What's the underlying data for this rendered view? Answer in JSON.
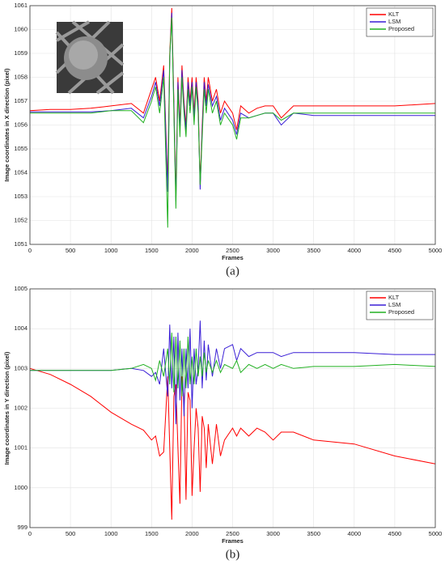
{
  "chart_data": [
    {
      "type": "line",
      "caption": "(a)",
      "xlabel": "Frames",
      "ylabel": "Image coordinates in X direction (pixel)",
      "x": [
        0,
        250,
        500,
        750,
        1000,
        1250,
        1400,
        1500,
        1550,
        1600,
        1650,
        1700,
        1725,
        1750,
        1775,
        1800,
        1825,
        1850,
        1875,
        1900,
        1925,
        1950,
        1975,
        2000,
        2025,
        2050,
        2075,
        2100,
        2125,
        2150,
        2175,
        2200,
        2250,
        2300,
        2350,
        2400,
        2500,
        2550,
        2600,
        2700,
        2800,
        2900,
        3000,
        3100,
        3250,
        3500,
        4000,
        4500,
        5000
      ],
      "series": [
        {
          "name": "KLT",
          "color": "#ff0000",
          "values": [
            1056.6,
            1056.65,
            1056.65,
            1056.7,
            1056.8,
            1056.9,
            1056.5,
            1057.5,
            1058,
            1057,
            1058.5,
            1053.5,
            1059,
            1060.9,
            1057,
            1053,
            1058,
            1056,
            1058.5,
            1057,
            1056,
            1058,
            1057,
            1058,
            1056.5,
            1058,
            1057,
            1053.5,
            1056,
            1058,
            1057,
            1058,
            1057,
            1057.5,
            1056.5,
            1057,
            1056.5,
            1055.8,
            1056.8,
            1056.5,
            1056.7,
            1056.8,
            1056.8,
            1056.3,
            1056.8,
            1056.8,
            1056.8,
            1056.8,
            1056.9
          ]
        },
        {
          "name": "LSM",
          "color": "#3a1fd6",
          "values": [
            1056.55,
            1056.55,
            1056.55,
            1056.55,
            1056.6,
            1056.7,
            1056.3,
            1057.2,
            1057.8,
            1056.8,
            1058.3,
            1053.2,
            1058.8,
            1060.7,
            1056.8,
            1052.8,
            1057.8,
            1055.8,
            1058.3,
            1056.8,
            1055.8,
            1057.8,
            1056.8,
            1057.8,
            1056.3,
            1057.8,
            1056.8,
            1053.3,
            1055.8,
            1057.8,
            1056.8,
            1057.7,
            1056.8,
            1057.2,
            1056.2,
            1056.7,
            1056.2,
            1055.6,
            1056.5,
            1056.3,
            1056.4,
            1056.5,
            1056.5,
            1056,
            1056.5,
            1056.4,
            1056.4,
            1056.4,
            1056.4
          ]
        },
        {
          "name": "Proposed",
          "color": "#22b022",
          "values": [
            1056.5,
            1056.5,
            1056.5,
            1056.5,
            1056.6,
            1056.6,
            1056.1,
            1057,
            1057.6,
            1056.5,
            1058,
            1051.7,
            1058.9,
            1060.5,
            1056.5,
            1052.5,
            1057.5,
            1055.5,
            1058,
            1056.5,
            1055.5,
            1057.5,
            1056.5,
            1057.6,
            1056,
            1057.6,
            1056.5,
            1053.5,
            1055.5,
            1057.5,
            1056.5,
            1057.5,
            1056.5,
            1057,
            1056,
            1056.5,
            1056,
            1055.4,
            1056.3,
            1056.3,
            1056.4,
            1056.5,
            1056.5,
            1056.2,
            1056.5,
            1056.5,
            1056.5,
            1056.5,
            1056.5
          ]
        }
      ],
      "xlim": [
        0,
        5000
      ],
      "xticks": [
        0,
        500,
        1000,
        1500,
        2000,
        2500,
        3000,
        3500,
        4000,
        4500,
        5000
      ],
      "ylim": [
        1051,
        1061
      ],
      "yticks": [
        1051,
        1052,
        1053,
        1054,
        1055,
        1056,
        1057,
        1058,
        1059,
        1060,
        1061
      ],
      "grid": true,
      "legend": "upper right"
    },
    {
      "type": "line",
      "caption": "(b)",
      "xlabel": "Frames",
      "ylabel": "Image coordinates in Y direction (pixel)",
      "x": [
        0,
        250,
        500,
        750,
        1000,
        1250,
        1400,
        1500,
        1550,
        1600,
        1650,
        1700,
        1725,
        1750,
        1775,
        1800,
        1825,
        1850,
        1875,
        1900,
        1925,
        1950,
        1975,
        2000,
        2025,
        2050,
        2075,
        2100,
        2125,
        2150,
        2175,
        2200,
        2250,
        2300,
        2350,
        2400,
        2500,
        2550,
        2600,
        2700,
        2800,
        2900,
        3000,
        3100,
        3250,
        3500,
        4000,
        4500,
        5000
      ],
      "series": [
        {
          "name": "KLT",
          "color": "#ff0000",
          "values": [
            1003,
            1002.85,
            1002.6,
            1002.3,
            1001.9,
            1001.6,
            1001.45,
            1001.2,
            1001.3,
            1000.8,
            1000.9,
            1002.8,
            1001,
            999.2,
            1002.3,
            1002.6,
            1001,
            999.6,
            1002.8,
            1002.2,
            999.7,
            1002.4,
            1002.2,
            999.8,
            1001,
            1002,
            1001.5,
            999.9,
            1001.8,
            1001.5,
            1000.5,
            1001.6,
            1000.6,
            1001.6,
            1000.8,
            1001.2,
            1001.5,
            1001.3,
            1001.5,
            1001.3,
            1001.5,
            1001.4,
            1001.2,
            1001.4,
            1001.4,
            1001.2,
            1001.1,
            1000.8,
            1000.6
          ]
        },
        {
          "name": "LSM",
          "color": "#3a1fd6",
          "values": [
            1002.95,
            1002.95,
            1002.95,
            1002.95,
            1002.95,
            1003,
            1002.95,
            1002.8,
            1002.9,
            1002.6,
            1003.5,
            1002.3,
            1004.1,
            1002.5,
            1003.8,
            1001.6,
            1003.9,
            1002.2,
            1003.5,
            1001.8,
            1003.5,
            1002.5,
            1004,
            1002,
            1003.5,
            1002.6,
            1003,
            1004.2,
            1002.5,
            1003.7,
            1002.7,
            1003.6,
            1002.8,
            1003.5,
            1003,
            1003.5,
            1003.6,
            1003.2,
            1003.5,
            1003.3,
            1003.4,
            1003.4,
            1003.4,
            1003.3,
            1003.4,
            1003.4,
            1003.4,
            1003.35,
            1003.35
          ]
        },
        {
          "name": "Proposed",
          "color": "#22b022",
          "values": [
            1002.95,
            1002.95,
            1002.95,
            1002.95,
            1002.95,
            1003,
            1003.1,
            1003,
            1002.7,
            1003.2,
            1002.8,
            1003.5,
            1002.6,
            1003.9,
            1002.4,
            1003.8,
            1002.5,
            1003.7,
            1002.3,
            1003.5,
            1002.5,
            1003.8,
            1002.6,
            1003.3,
            1002.6,
            1003.5,
            1002.8,
            1003.3,
            1002.8,
            1003.4,
            1002.9,
            1003.2,
            1002.9,
            1003.2,
            1002.9,
            1003.1,
            1003,
            1003.2,
            1002.9,
            1003.1,
            1003,
            1003.1,
            1003,
            1003.1,
            1003,
            1003.05,
            1003.05,
            1003.1,
            1003.05
          ]
        }
      ],
      "xlim": [
        0,
        5000
      ],
      "xticks": [
        0,
        500,
        1000,
        1500,
        2000,
        2500,
        3000,
        3500,
        4000,
        4500,
        5000
      ],
      "ylim": [
        999,
        1005
      ],
      "yticks": [
        999,
        1000,
        1001,
        1002,
        1003,
        1004,
        1005
      ],
      "grid": true,
      "legend": "upper right"
    }
  ]
}
